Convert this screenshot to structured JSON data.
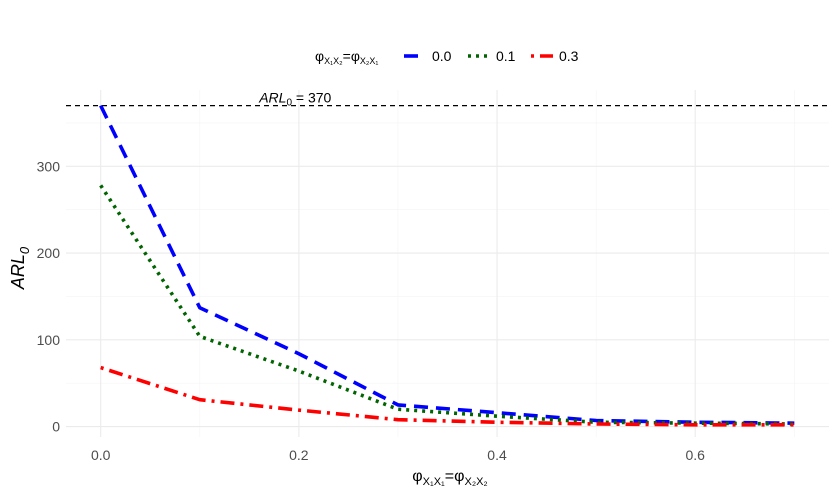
{
  "chart_data": {
    "type": "line",
    "x": [
      0.0,
      0.1,
      0.2,
      0.3,
      0.4,
      0.5,
      0.6,
      0.7
    ],
    "series": [
      {
        "name": "0.0",
        "color": "#0000ff",
        "dash": "dashed",
        "values": [
          370,
          137,
          84,
          25,
          16,
          7,
          5,
          4
        ]
      },
      {
        "name": "0.1",
        "color": "#006400",
        "dash": "dotted",
        "values": [
          278,
          104,
          64,
          20,
          12,
          5,
          4,
          3
        ]
      },
      {
        "name": "0.3",
        "color": "#ff0000",
        "dash": "dotdash",
        "values": [
          68,
          31,
          19,
          8,
          5,
          3,
          2,
          2
        ]
      }
    ],
    "xlabel_parts": {
      "base": "φ",
      "sub": "X₁X₁",
      "eq": "=",
      "base2": "φ",
      "sub2": "X₂X₂"
    },
    "ylabel_parts": {
      "base": "ARL",
      "sub": "0"
    },
    "legend_title_parts": {
      "base": "φ",
      "sub": "X₁X₂",
      "eq": "=",
      "base2": "φ",
      "sub2": "X₂X₁"
    },
    "xticks": [
      "0.0",
      "0.2",
      "0.4",
      "0.6"
    ],
    "xtick_values": [
      0.0,
      0.2,
      0.4,
      0.6
    ],
    "yticks": [
      "0",
      "100",
      "200",
      "300"
    ],
    "ytick_values": [
      0,
      100,
      200,
      300
    ],
    "xlim": [
      -0.035,
      0.735
    ],
    "ylim": [
      -12,
      388
    ],
    "reference_line": {
      "y": 370,
      "label_base": "ARL",
      "label_sub": "0",
      "label_rest": " = 370"
    },
    "legend_position": "top",
    "grid": true
  }
}
